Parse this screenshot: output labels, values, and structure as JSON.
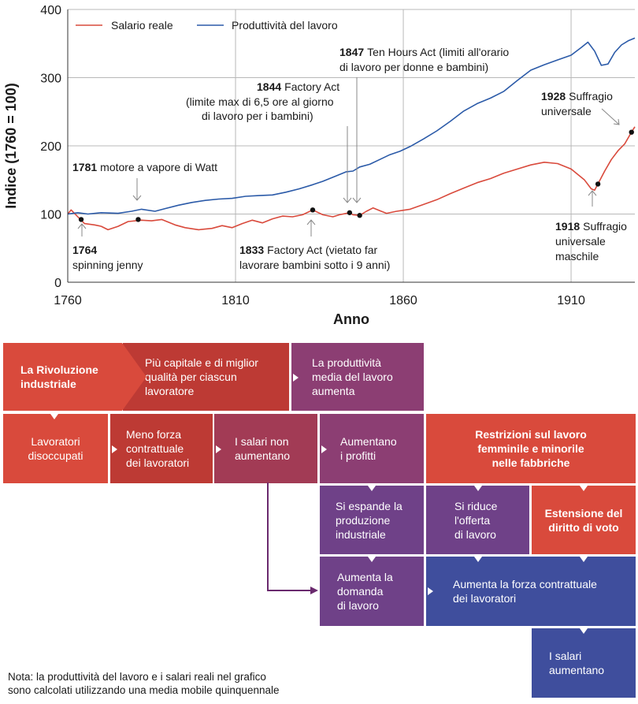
{
  "chart_data": {
    "type": "line",
    "xlabel": "Anno",
    "ylabel": "Indice (1760 = 100)",
    "xlim": [
      1760,
      1929
    ],
    "ylim": [
      0,
      400
    ],
    "xticks": [
      "1760",
      "1810",
      "1860",
      "1910"
    ],
    "xtick_values": [
      1760,
      1810,
      1860,
      1910
    ],
    "yticks": [
      "0",
      "100",
      "200",
      "300",
      "400"
    ],
    "ytick_values": [
      0,
      100,
      200,
      300,
      400
    ],
    "grid": true,
    "legend": [
      "Salario reale",
      "Produttività del lavoro"
    ],
    "series": [
      {
        "name": "Salario reale",
        "color": "#d94a3c",
        "points": [
          [
            1760,
            100
          ],
          [
            1761,
            106
          ],
          [
            1763,
            96
          ],
          [
            1765,
            86
          ],
          [
            1768,
            84
          ],
          [
            1770,
            82
          ],
          [
            1772,
            77
          ],
          [
            1775,
            82
          ],
          [
            1778,
            89
          ],
          [
            1782,
            91
          ],
          [
            1785,
            90
          ],
          [
            1788,
            92
          ],
          [
            1792,
            84
          ],
          [
            1795,
            80
          ],
          [
            1799,
            77
          ],
          [
            1803,
            79
          ],
          [
            1806,
            83
          ],
          [
            1809,
            80
          ],
          [
            1812,
            86
          ],
          [
            1815,
            91
          ],
          [
            1818,
            87
          ],
          [
            1821,
            93
          ],
          [
            1824,
            97
          ],
          [
            1827,
            96
          ],
          [
            1830,
            99
          ],
          [
            1833,
            106
          ],
          [
            1836,
            99
          ],
          [
            1839,
            96
          ],
          [
            1841,
            99
          ],
          [
            1844,
            102
          ],
          [
            1845,
            99
          ],
          [
            1847,
            98
          ],
          [
            1849,
            104
          ],
          [
            1851,
            109
          ],
          [
            1853,
            105
          ],
          [
            1855,
            101
          ],
          [
            1858,
            104
          ],
          [
            1862,
            107
          ],
          [
            1866,
            114
          ],
          [
            1870,
            121
          ],
          [
            1874,
            130
          ],
          [
            1878,
            138
          ],
          [
            1882,
            146
          ],
          [
            1886,
            152
          ],
          [
            1890,
            160
          ],
          [
            1894,
            166
          ],
          [
            1898,
            172
          ],
          [
            1902,
            176
          ],
          [
            1906,
            174
          ],
          [
            1910,
            166
          ],
          [
            1914,
            150
          ],
          [
            1916,
            137
          ],
          [
            1917,
            135
          ],
          [
            1918,
            144
          ],
          [
            1920,
            163
          ],
          [
            1922,
            180
          ],
          [
            1924,
            193
          ],
          [
            1926,
            203
          ],
          [
            1928,
            220
          ],
          [
            1929,
            228
          ]
        ]
      },
      {
        "name": "Produttività del lavoro",
        "color": "#2b5aa8",
        "points": [
          [
            1760,
            100
          ],
          [
            1763,
            102
          ],
          [
            1766,
            100
          ],
          [
            1770,
            102
          ],
          [
            1775,
            101
          ],
          [
            1779,
            104
          ],
          [
            1782,
            107
          ],
          [
            1786,
            104
          ],
          [
            1789,
            108
          ],
          [
            1793,
            113
          ],
          [
            1797,
            117
          ],
          [
            1801,
            120
          ],
          [
            1805,
            122
          ],
          [
            1809,
            123
          ],
          [
            1813,
            126
          ],
          [
            1817,
            127
          ],
          [
            1821,
            128
          ],
          [
            1825,
            132
          ],
          [
            1829,
            137
          ],
          [
            1833,
            143
          ],
          [
            1836,
            148
          ],
          [
            1840,
            156
          ],
          [
            1843,
            162
          ],
          [
            1845,
            163
          ],
          [
            1847,
            169
          ],
          [
            1850,
            173
          ],
          [
            1853,
            180
          ],
          [
            1856,
            187
          ],
          [
            1859,
            192
          ],
          [
            1862,
            199
          ],
          [
            1866,
            210
          ],
          [
            1870,
            222
          ],
          [
            1874,
            236
          ],
          [
            1878,
            251
          ],
          [
            1882,
            262
          ],
          [
            1886,
            270
          ],
          [
            1890,
            280
          ],
          [
            1894,
            296
          ],
          [
            1898,
            311
          ],
          [
            1902,
            319
          ],
          [
            1906,
            326
          ],
          [
            1910,
            333
          ],
          [
            1913,
            344
          ],
          [
            1915,
            352
          ],
          [
            1917,
            339
          ],
          [
            1919,
            318
          ],
          [
            1921,
            320
          ],
          [
            1923,
            337
          ],
          [
            1925,
            348
          ],
          [
            1927,
            354
          ],
          [
            1929,
            358
          ]
        ]
      }
    ],
    "markers": [
      [
        1764,
        92
      ],
      [
        1781,
        92
      ],
      [
        1833,
        106
      ],
      [
        1844,
        102
      ],
      [
        1847,
        98
      ],
      [
        1918,
        144
      ],
      [
        1928,
        220
      ]
    ],
    "annotations": [
      {
        "year": "1764",
        "text": "spinning jenny"
      },
      {
        "year": "1781",
        "text": "motore a vapore di Watt"
      },
      {
        "year": "1833",
        "text": "Factory Act (vietato far",
        "text2": "lavorare bambini sotto i 9 anni)"
      },
      {
        "year": "1844",
        "text": "Factory Act",
        "text2": "(limite max di 6,5 ore al giorno",
        "text3": "di lavoro per i bambini)"
      },
      {
        "year": "1847",
        "text": "Ten Hours Act (limiti all'orario",
        "text2": "di lavoro per donne e bambini)"
      },
      {
        "year": "1918",
        "text": "Suffragio",
        "text2": "universale",
        "text3": "maschile"
      },
      {
        "year": "1928",
        "text": "Suffragio",
        "text2": "universale"
      }
    ]
  },
  "diagram": {
    "rivoluzione": [
      "La Rivoluzione",
      "industriale"
    ],
    "capitale": [
      "Più capitale e di miglior",
      "qualità per ciascun",
      "lavoratore"
    ],
    "produttivita": [
      "La produttività",
      "media del lavoro",
      "aumenta"
    ],
    "disoccupati": [
      "Lavoratori",
      "disoccupati"
    ],
    "meno_forza": [
      "Meno forza",
      "contrattuale",
      "dei lavoratori"
    ],
    "salari_non": [
      "I salari non",
      "aumentano"
    ],
    "profitti": [
      "Aumentano",
      "i profitti"
    ],
    "restrizioni": [
      "Restrizioni sul lavoro",
      "femminile e minorile",
      "nelle fabbriche"
    ],
    "espande": [
      "Si espande la",
      "produzione",
      "industriale"
    ],
    "riduce": [
      "Si riduce",
      "l'offerta",
      "di lavoro"
    ],
    "estensione": [
      "Estensione del",
      "diritto di voto"
    ],
    "domanda": [
      "Aumenta la",
      "domanda",
      "di lavoro"
    ],
    "forza_contrattuale": [
      "Aumenta la forza contrattuale",
      "dei lavoratori"
    ],
    "salari_aumentano": [
      "I salari",
      "aumentano"
    ]
  },
  "note": [
    "Nota: la produttività del lavoro e i salari reali nel grafico",
    "sono calcolati utilizzando una media mobile quinquennale"
  ],
  "colors": {
    "wage": "#d94a3c",
    "productivity": "#2b5aa8",
    "arrow": "#6a2a6e"
  }
}
